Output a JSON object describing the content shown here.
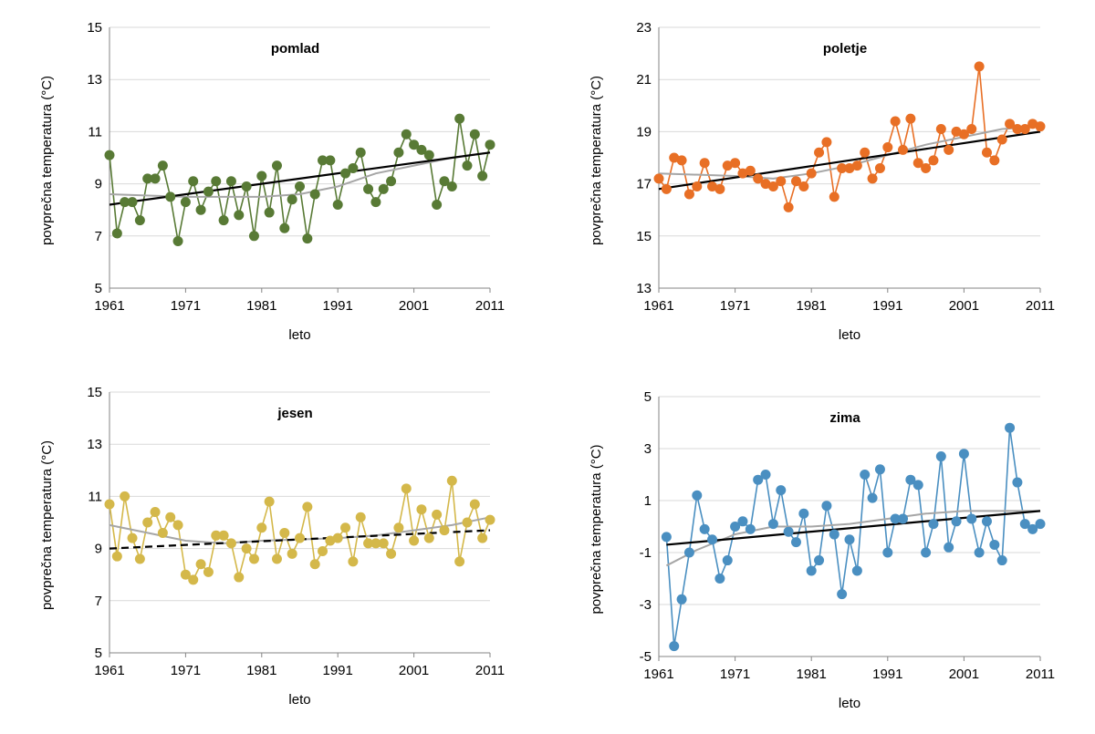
{
  "chart_data": [
    {
      "type": "line",
      "title": "pomlad",
      "xlabel": "leto",
      "ylabel": "povprečna temperatura (°C)",
      "ylim": [
        5,
        15
      ],
      "yticks": [
        "5",
        "7",
        "9",
        "11",
        "13",
        "15"
      ],
      "xlim": [
        1961,
        2011
      ],
      "xticks": [
        "1961",
        "1971",
        "1981",
        "1991",
        "2001",
        "2011"
      ],
      "grid": "horizontal",
      "color": "#587a35",
      "linear_trend_style": "solid",
      "x": [
        1961,
        1962,
        1963,
        1964,
        1965,
        1966,
        1967,
        1968,
        1969,
        1970,
        1971,
        1972,
        1973,
        1974,
        1975,
        1976,
        1977,
        1978,
        1979,
        1980,
        1981,
        1982,
        1983,
        1984,
        1985,
        1986,
        1987,
        1988,
        1989,
        1990,
        1991,
        1992,
        1993,
        1994,
        1995,
        1996,
        1997,
        1998,
        1999,
        2000,
        2001,
        2002,
        2003,
        2004,
        2005,
        2006,
        2007,
        2008,
        2009,
        2010,
        2011
      ],
      "values": [
        10.1,
        7.1,
        8.3,
        8.3,
        7.6,
        9.2,
        9.2,
        9.7,
        8.5,
        6.8,
        8.3,
        9.1,
        8.0,
        8.7,
        9.1,
        7.6,
        9.1,
        7.8,
        8.9,
        7.0,
        9.3,
        7.9,
        9.7,
        7.3,
        8.4,
        8.9,
        6.9,
        8.6,
        9.9,
        9.9,
        8.2,
        9.4,
        9.6,
        10.2,
        8.8,
        8.3,
        8.8,
        9.1,
        10.2,
        10.9,
        10.5,
        10.3,
        10.1,
        8.2,
        9.1,
        8.9,
        11.5,
        9.7,
        10.9,
        9.3,
        10.5
      ],
      "linear_trend": [
        [
          1961,
          8.2
        ],
        [
          2011,
          10.2
        ]
      ],
      "smooth_trend": [
        [
          1961,
          8.6
        ],
        [
          1971,
          8.5
        ],
        [
          1981,
          8.5
        ],
        [
          1986,
          8.6
        ],
        [
          1991,
          8.9
        ],
        [
          1996,
          9.4
        ],
        [
          2001,
          9.7
        ],
        [
          2006,
          10.0
        ],
        [
          2011,
          10.2
        ]
      ]
    },
    {
      "type": "line",
      "title": "poletje",
      "xlabel": "leto",
      "ylabel": "povprečna temperatura (°C)",
      "ylim": [
        13,
        23
      ],
      "yticks": [
        "13",
        "15",
        "17",
        "19",
        "21",
        "23"
      ],
      "xlim": [
        1961,
        2011
      ],
      "xticks": [
        "1961",
        "1971",
        "1981",
        "1991",
        "2001",
        "2011"
      ],
      "grid": "horizontal",
      "color": "#e86f25",
      "linear_trend_style": "solid",
      "x": [
        1961,
        1962,
        1963,
        1964,
        1965,
        1966,
        1967,
        1968,
        1969,
        1970,
        1971,
        1972,
        1973,
        1974,
        1975,
        1976,
        1977,
        1978,
        1979,
        1980,
        1981,
        1982,
        1983,
        1984,
        1985,
        1986,
        1987,
        1988,
        1989,
        1990,
        1991,
        1992,
        1993,
        1994,
        1995,
        1996,
        1997,
        1998,
        1999,
        2000,
        2001,
        2002,
        2003,
        2004,
        2005,
        2006,
        2007,
        2008,
        2009,
        2010,
        2011
      ],
      "values": [
        17.2,
        16.8,
        18.0,
        17.9,
        16.6,
        16.9,
        17.8,
        16.9,
        16.8,
        17.7,
        17.8,
        17.4,
        17.5,
        17.2,
        17.0,
        16.9,
        17.1,
        16.1,
        17.1,
        16.9,
        17.4,
        18.2,
        18.6,
        16.5,
        17.6,
        17.6,
        17.7,
        18.2,
        17.2,
        17.6,
        18.4,
        19.4,
        18.3,
        19.5,
        17.8,
        17.6,
        17.9,
        19.1,
        18.3,
        19.0,
        18.9,
        19.1,
        21.5,
        18.2,
        17.9,
        18.7,
        19.3,
        19.1,
        19.1,
        19.3,
        19.2
      ],
      "linear_trend": [
        [
          1961,
          16.8
        ],
        [
          2011,
          19.0
        ]
      ],
      "smooth_trend": [
        [
          1961,
          17.4
        ],
        [
          1971,
          17.3
        ],
        [
          1976,
          17.2
        ],
        [
          1981,
          17.4
        ],
        [
          1986,
          17.7
        ],
        [
          1991,
          18.1
        ],
        [
          1996,
          18.5
        ],
        [
          2001,
          18.8
        ],
        [
          2006,
          19.1
        ],
        [
          2011,
          19.2
        ]
      ]
    },
    {
      "type": "line",
      "title": "jesen",
      "xlabel": "leto",
      "ylabel": "povprečna temperatura (°C)",
      "ylim": [
        5,
        15
      ],
      "yticks": [
        "5",
        "7",
        "9",
        "11",
        "13",
        "15"
      ],
      "xlim": [
        1961,
        2011
      ],
      "xticks": [
        "1961",
        "1971",
        "1981",
        "1991",
        "2001",
        "2011"
      ],
      "grid": "horizontal",
      "color": "#d4b84a",
      "linear_trend_style": "dashed",
      "x": [
        1961,
        1962,
        1963,
        1964,
        1965,
        1966,
        1967,
        1968,
        1969,
        1970,
        1971,
        1972,
        1973,
        1974,
        1975,
        1976,
        1977,
        1978,
        1979,
        1980,
        1981,
        1982,
        1983,
        1984,
        1985,
        1986,
        1987,
        1988,
        1989,
        1990,
        1991,
        1992,
        1993,
        1994,
        1995,
        1996,
        1997,
        1998,
        1999,
        2000,
        2001,
        2002,
        2003,
        2004,
        2005,
        2006,
        2007,
        2008,
        2009,
        2010,
        2011
      ],
      "values": [
        10.7,
        8.7,
        11.0,
        9.4,
        8.6,
        10.0,
        10.4,
        9.6,
        10.2,
        9.9,
        8.0,
        7.8,
        8.4,
        8.1,
        9.5,
        9.5,
        9.2,
        7.9,
        9.0,
        8.6,
        9.8,
        10.8,
        8.6,
        9.6,
        8.8,
        9.4,
        10.6,
        8.4,
        8.9,
        9.3,
        9.4,
        9.8,
        8.5,
        10.2,
        9.2,
        9.2,
        9.2,
        8.8,
        9.8,
        11.3,
        9.3,
        10.5,
        9.4,
        10.3,
        9.7,
        11.6,
        8.5,
        10.0,
        10.7,
        9.4,
        10.1
      ],
      "linear_trend": [
        [
          1961,
          9.0
        ],
        [
          2011,
          9.7
        ]
      ],
      "smooth_trend": [
        [
          1961,
          9.9
        ],
        [
          1966,
          9.6
        ],
        [
          1971,
          9.3
        ],
        [
          1976,
          9.2
        ],
        [
          1981,
          9.3
        ],
        [
          1986,
          9.35
        ],
        [
          1991,
          9.4
        ],
        [
          1996,
          9.5
        ],
        [
          2001,
          9.7
        ],
        [
          2006,
          9.9
        ],
        [
          2011,
          10.2
        ]
      ]
    },
    {
      "type": "line",
      "title": "zima",
      "xlabel": "leto",
      "ylabel": "povprečna temperatura (°C)",
      "ylim": [
        -5,
        5
      ],
      "yticks": [
        "-5",
        "-3",
        "-1",
        "1",
        "3",
        "5"
      ],
      "xlim": [
        1961,
        2011
      ],
      "xticks": [
        "1961",
        "1971",
        "1981",
        "1991",
        "2001",
        "2011"
      ],
      "grid": "horizontal",
      "color": "#4a8fc1",
      "linear_trend_style": "solid",
      "x": [
        1962,
        1963,
        1964,
        1965,
        1966,
        1967,
        1968,
        1969,
        1970,
        1971,
        1972,
        1973,
        1974,
        1975,
        1976,
        1977,
        1978,
        1979,
        1980,
        1981,
        1982,
        1983,
        1984,
        1985,
        1986,
        1987,
        1988,
        1989,
        1990,
        1991,
        1992,
        1993,
        1994,
        1995,
        1996,
        1997,
        1998,
        1999,
        2000,
        2001,
        2002,
        2003,
        2004,
        2005,
        2006,
        2007,
        2008,
        2009,
        2010,
        2011
      ],
      "values": [
        -0.4,
        -4.6,
        -2.8,
        -1.0,
        1.2,
        -0.1,
        -0.5,
        -2.0,
        -1.3,
        -0.0,
        0.2,
        -0.1,
        1.8,
        2.0,
        0.1,
        1.4,
        -0.2,
        -0.6,
        0.5,
        -1.7,
        -1.3,
        0.8,
        -0.3,
        -2.6,
        -0.5,
        -1.7,
        2.0,
        1.1,
        2.2,
        -1.0,
        0.3,
        0.3,
        1.8,
        1.6,
        -1.0,
        0.1,
        2.7,
        -0.8,
        0.2,
        2.8,
        0.3,
        -1.0,
        0.2,
        -0.7,
        -1.3,
        3.8,
        1.7,
        0.1,
        -0.1,
        0.1
      ],
      "linear_trend": [
        [
          1962,
          -0.7
        ],
        [
          2011,
          0.6
        ]
      ],
      "smooth_trend": [
        [
          1962,
          -1.5
        ],
        [
          1966,
          -0.9
        ],
        [
          1971,
          -0.3
        ],
        [
          1976,
          0.0
        ],
        [
          1981,
          0.0
        ],
        [
          1986,
          0.1
        ],
        [
          1991,
          0.3
        ],
        [
          1996,
          0.5
        ],
        [
          2001,
          0.6
        ],
        [
          2006,
          0.6
        ],
        [
          2011,
          0.6
        ]
      ]
    }
  ]
}
